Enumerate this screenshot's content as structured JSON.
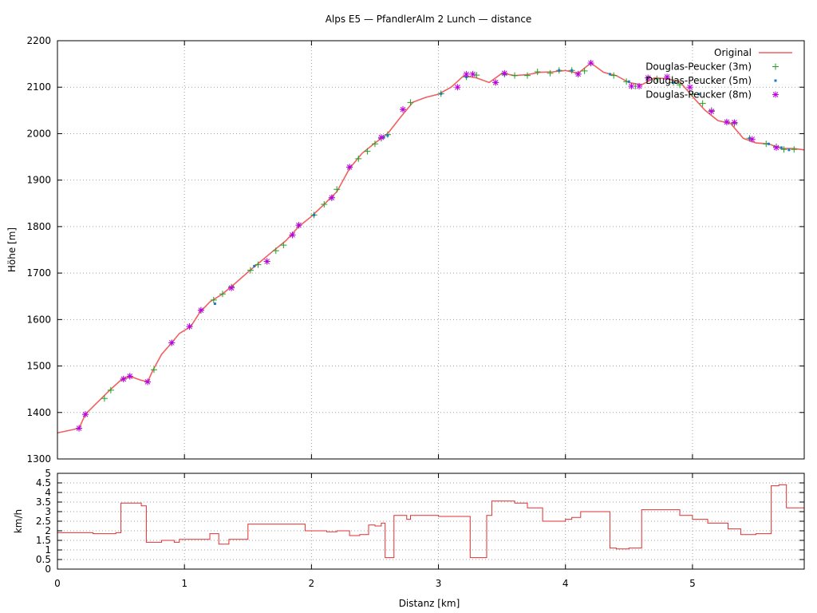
{
  "chart_data": [
    {
      "type": "line",
      "title": "Alps E5 — PfandlerAlm 2 Lunch — distance",
      "xlabel": "",
      "ylabel": "Höhe [m]",
      "xlim": [
        0,
        5.88
      ],
      "ylim": [
        1300,
        2200
      ],
      "yticks": [
        "1300",
        "1400",
        "1500",
        "1600",
        "1700",
        "1800",
        "1900",
        "2000",
        "2100",
        "2200"
      ],
      "grid": true,
      "legend_position": "top-right",
      "series": [
        {
          "name": "Original",
          "style": "line",
          "color": "#f06060",
          "x": [
            0,
            0.17,
            0.22,
            0.3,
            0.4,
            0.5,
            0.57,
            0.65,
            0.71,
            0.75,
            0.82,
            0.9,
            0.96,
            1.05,
            1.12,
            1.2,
            1.3,
            1.4,
            1.5,
            1.6,
            1.7,
            1.8,
            1.9,
            2.0,
            2.1,
            2.2,
            2.3,
            2.4,
            2.5,
            2.6,
            2.7,
            2.8,
            2.9,
            3.0,
            3.1,
            3.2,
            3.3,
            3.4,
            3.5,
            3.6,
            3.7,
            3.8,
            3.9,
            4.0,
            4.1,
            4.2,
            4.3,
            4.4,
            4.5,
            4.6,
            4.7,
            4.8,
            4.9,
            5.0,
            5.1,
            5.2,
            5.3,
            5.4,
            5.5,
            5.6,
            5.7,
            5.8,
            5.88
          ],
          "y": [
            1356,
            1366,
            1396,
            1418,
            1445,
            1470,
            1478,
            1470,
            1466,
            1490,
            1525,
            1550,
            1570,
            1585,
            1615,
            1638,
            1655,
            1678,
            1702,
            1725,
            1748,
            1770,
            1800,
            1822,
            1848,
            1875,
            1925,
            1958,
            1980,
            2000,
            2035,
            2068,
            2078,
            2085,
            2100,
            2125,
            2120,
            2110,
            2130,
            2125,
            2127,
            2132,
            2133,
            2136,
            2130,
            2152,
            2132,
            2125,
            2110,
            2105,
            2120,
            2118,
            2112,
            2080,
            2050,
            2028,
            2022,
            1990,
            1980,
            1978,
            1968,
            1968,
            1965
          ]
        },
        {
          "name": "Douglas-Peucker (3m)",
          "style": "marker",
          "marker": "plus",
          "color": "#22a022",
          "x": [
            0.17,
            0.22,
            0.37,
            0.42,
            0.52,
            0.57,
            0.71,
            0.76,
            0.9,
            1.04,
            1.13,
            1.23,
            1.3,
            1.37,
            1.52,
            1.58,
            1.65,
            1.72,
            1.78,
            1.85,
            1.9,
            2.02,
            2.1,
            2.16,
            2.2,
            2.3,
            2.37,
            2.44,
            2.5,
            2.55,
            2.6,
            2.72,
            2.78,
            3.02,
            3.22,
            3.3,
            3.45,
            3.52,
            3.6,
            3.7,
            3.78,
            3.88,
            3.95,
            4.05,
            4.1,
            4.15,
            4.2,
            4.38,
            4.48,
            4.55,
            4.65,
            4.72,
            4.85,
            4.9,
            5.0,
            5.08,
            5.15,
            5.27,
            5.33,
            5.45,
            5.58,
            5.66,
            5.72,
            5.8
          ],
          "y": [
            1366,
            1396,
            1430,
            1448,
            1472,
            1478,
            1466,
            1492,
            1550,
            1585,
            1620,
            1642,
            1655,
            1670,
            1706,
            1718,
            1725,
            1748,
            1760,
            1782,
            1803,
            1825,
            1848,
            1862,
            1880,
            1928,
            1946,
            1962,
            1978,
            1990,
            1998,
            2052,
            2067,
            2086,
            2122,
            2126,
            2110,
            2128,
            2125,
            2125,
            2133,
            2130,
            2136,
            2136,
            2128,
            2135,
            2152,
            2125,
            2112,
            2102,
            2120,
            2118,
            2110,
            2105,
            2085,
            2065,
            2050,
            2025,
            2022,
            1990,
            1978,
            1972,
            1966,
            1966
          ]
        },
        {
          "name": "Douglas-Peucker (5m)",
          "style": "marker",
          "marker": "square",
          "color": "#1f78c8",
          "x": [
            0.17,
            0.22,
            0.52,
            0.57,
            0.71,
            0.9,
            1.04,
            1.13,
            1.24,
            1.55,
            1.65,
            1.85,
            1.9,
            2.02,
            2.16,
            2.3,
            2.57,
            2.6,
            2.72,
            3.02,
            3.22,
            3.52,
            3.95,
            4.05,
            4.2,
            4.35,
            4.5,
            4.65,
            4.85,
            5.05,
            5.27,
            5.45,
            5.6,
            5.7,
            5.76
          ],
          "y": [
            1366,
            1396,
            1472,
            1478,
            1466,
            1550,
            1585,
            1620,
            1634,
            1715,
            1725,
            1782,
            1803,
            1825,
            1862,
            1928,
            1992,
            1996,
            2052,
            2086,
            2122,
            2128,
            2136,
            2136,
            2152,
            2128,
            2112,
            2120,
            2110,
            2085,
            2025,
            1990,
            1978,
            1970,
            1965
          ]
        },
        {
          "name": "Douglas-Peucker (8m)",
          "style": "marker",
          "marker": "star",
          "color": "#c000e0",
          "x": [
            0.17,
            0.22,
            0.52,
            0.57,
            0.71,
            0.9,
            1.04,
            1.13,
            1.37,
            1.65,
            1.85,
            1.9,
            2.16,
            2.3,
            2.55,
            2.72,
            3.15,
            3.22,
            3.27,
            3.45,
            3.52,
            4.1,
            4.2,
            4.52,
            4.58,
            4.65,
            4.8,
            4.98,
            5.15,
            5.27,
            5.33,
            5.47,
            5.66
          ],
          "y": [
            1366,
            1396,
            1472,
            1478,
            1466,
            1550,
            1585,
            1620,
            1668,
            1725,
            1782,
            1803,
            1862,
            1928,
            1992,
            2052,
            2100,
            2128,
            2128,
            2110,
            2130,
            2128,
            2152,
            2102,
            2102,
            2120,
            2122,
            2100,
            2048,
            2025,
            2024,
            1988,
            1970
          ]
        }
      ]
    },
    {
      "type": "line",
      "title": "",
      "xlabel": "Distanz [km]",
      "ylabel": "km/h",
      "xlim": [
        0,
        5.88
      ],
      "ylim": [
        0,
        5
      ],
      "xticks": [
        "0",
        "1",
        "2",
        "3",
        "4",
        "5"
      ],
      "yticks": [
        "0",
        "0.5",
        "1",
        "1.5",
        "2",
        "2.5",
        "3",
        "3.5",
        "4",
        "4.5",
        "5"
      ],
      "grid": true,
      "series": [
        {
          "name": "",
          "style": "step",
          "color": "#e03030",
          "x": [
            0,
            0.28,
            0.46,
            0.5,
            0.66,
            0.7,
            0.82,
            0.92,
            0.96,
            1.2,
            1.27,
            1.35,
            1.5,
            1.65,
            1.75,
            1.95,
            2.12,
            2.2,
            2.3,
            2.38,
            2.45,
            2.5,
            2.55,
            2.58,
            2.65,
            2.75,
            2.78,
            2.92,
            3.0,
            3.12,
            3.25,
            3.38,
            3.42,
            3.5,
            3.6,
            3.7,
            3.82,
            4.0,
            4.05,
            4.12,
            4.2,
            4.35,
            4.4,
            4.5,
            4.6,
            4.8,
            4.9,
            5.0,
            5.12,
            5.28,
            5.38,
            5.5,
            5.62,
            5.68,
            5.74,
            5.88
          ],
          "y": [
            1.9,
            1.85,
            1.9,
            3.45,
            3.3,
            1.4,
            1.5,
            1.4,
            1.55,
            1.85,
            1.3,
            1.55,
            2.35,
            2.35,
            2.35,
            2.0,
            1.95,
            2.0,
            1.75,
            1.8,
            2.3,
            2.25,
            2.4,
            0.6,
            2.8,
            2.6,
            2.8,
            2.8,
            2.75,
            2.75,
            0.6,
            2.8,
            3.55,
            3.55,
            3.45,
            3.2,
            2.5,
            2.6,
            2.7,
            3.0,
            3.0,
            1.1,
            1.05,
            1.1,
            3.1,
            3.1,
            2.8,
            2.6,
            2.4,
            2.1,
            1.8,
            1.85,
            4.35,
            4.4,
            3.2,
            3.2
          ]
        }
      ]
    }
  ]
}
